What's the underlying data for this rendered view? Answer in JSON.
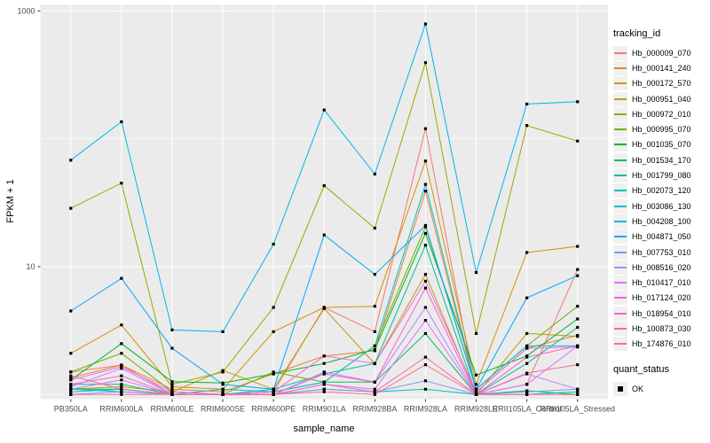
{
  "chart_data": {
    "type": "line",
    "title": "",
    "xlabel": "sample_name",
    "ylabel": "FPKM + 1",
    "y_scale": "log10",
    "legend_title": "tracking_id",
    "legend_position": "right",
    "grid": "on",
    "panel_background": "#EBEBEB",
    "gridline_color": "#FFFFFF",
    "point_color": "#000000",
    "tick_label_color": "#4D4D4D",
    "x_categories": [
      "PB350LA",
      "RRIM600LA",
      "RRIM600LE",
      "RRIM600SE",
      "RRIM600PE",
      "RRIM901LA",
      "RRIM928BA",
      "RRIM928LA",
      "RRIM928LE",
      "RRII105LA_Control",
      "RRII105LA_Stressed"
    ],
    "y_axis": {
      "min": 0.92,
      "max": 1115,
      "ticks": [
        {
          "value": 10,
          "label": "10"
        },
        {
          "value": 1000,
          "label": "1000"
        }
      ],
      "minor_gridlines": [
        1,
        100
      ]
    },
    "ylim": [
      0.92,
      1115
    ],
    "quant_legend": {
      "title": "quant_status",
      "items": [
        "OK"
      ]
    },
    "series": [
      {
        "name": "Hb_000009_070",
        "color": "#F8766D",
        "values": [
          1.5,
          1.7,
          1.0,
          1.0,
          1.05,
          4.8,
          3.1,
          120,
          1.0,
          1.2,
          9.5
        ]
      },
      {
        "name": "Hb_000141_240",
        "color": "#E9842C",
        "values": [
          1.35,
          1.7,
          1.1,
          1.05,
          1.45,
          2.0,
          2.2,
          39,
          1.05,
          2.3,
          2.9
        ]
      },
      {
        "name": "Hb_000172_570",
        "color": "#D69100",
        "values": [
          2.1,
          3.5,
          1.15,
          1.1,
          3.1,
          4.8,
          4.9,
          67,
          1.2,
          12.9,
          14.4
        ]
      },
      {
        "name": "Hb_000951_040",
        "color": "#BC9D00",
        "values": [
          1.1,
          1.15,
          1.05,
          1.54,
          1.1,
          4.7,
          1.74,
          8.7,
          1.0,
          3.0,
          2.85
        ]
      },
      {
        "name": "Hb_000972_010",
        "color": "#9CA700",
        "values": [
          28.6,
          45,
          1.2,
          1.5,
          4.8,
          43,
          20,
          394,
          3.0,
          127,
          96
        ]
      },
      {
        "name": "Hb_000995_070",
        "color": "#6FB000",
        "values": [
          1.5,
          2.1,
          1.05,
          1.0,
          1.5,
          1.25,
          2.4,
          20.5,
          1.1,
          2.4,
          4.9
        ]
      },
      {
        "name": "Hb_001035_070",
        "color": "#00B81F",
        "values": [
          1.3,
          2.5,
          1.26,
          1.23,
          1.45,
          1.75,
          2.25,
          18.2,
          1.42,
          2.0,
          3.9
        ]
      },
      {
        "name": "Hb_001534_170",
        "color": "#00BC59",
        "values": [
          1.1,
          1.1,
          1.0,
          1.0,
          1.05,
          1.25,
          1.25,
          3.0,
          1.0,
          1.07,
          1.0
        ]
      },
      {
        "name": "Hb_001799_080",
        "color": "#00C08E",
        "values": [
          1.2,
          1.2,
          1.0,
          1.0,
          1.1,
          1.45,
          1.75,
          14.7,
          1.0,
          1.75,
          3.35
        ]
      },
      {
        "name": "Hb_002073_120",
        "color": "#00C0B4",
        "values": [
          1.05,
          1.1,
          1.0,
          1.0,
          1.0,
          1.1,
          1.05,
          1.1,
          1.0,
          1.0,
          1.05
        ]
      },
      {
        "name": "Hb_003086_130",
        "color": "#00BDD4",
        "values": [
          1.1,
          1.05,
          1.0,
          1.1,
          1.05,
          1.25,
          2.4,
          44,
          1.1,
          2.4,
          2.4
        ]
      },
      {
        "name": "Hb_004208_100",
        "color": "#00B5EC",
        "values": [
          68,
          136,
          3.2,
          3.1,
          15,
          168,
          53,
          790,
          9,
          187,
          195
        ]
      },
      {
        "name": "Hb_004871_050",
        "color": "#00A7FF",
        "values": [
          4.5,
          8.1,
          2.3,
          1.2,
          1.1,
          17.7,
          8.7,
          21,
          1.1,
          5.7,
          8.5
        ]
      },
      {
        "name": "Hb_007753_010",
        "color": "#7E96FF",
        "values": [
          1.0,
          1.05,
          1.0,
          1.0,
          1.0,
          1.1,
          1.05,
          1.28,
          1.0,
          1.05,
          1.1
        ]
      },
      {
        "name": "Hb_008516_020",
        "color": "#B983FF",
        "values": [
          1.15,
          1.6,
          1.0,
          1.0,
          1.0,
          1.5,
          1.25,
          4.8,
          1.0,
          1.45,
          1.1
        ]
      },
      {
        "name": "Hb_010417_010",
        "color": "#DC71FA",
        "values": [
          1.1,
          1.3,
          1.0,
          1.0,
          1.0,
          1.2,
          1.1,
          3.8,
          1.0,
          1.2,
          2.4
        ]
      },
      {
        "name": "Hb_017124_020",
        "color": "#F265E7",
        "values": [
          1.3,
          1.65,
          1.05,
          1.0,
          1.05,
          2.0,
          1.75,
          7.7,
          1.05,
          2.3,
          2.35
        ]
      },
      {
        "name": "Hb_018954_010",
        "color": "#FF61C7",
        "values": [
          1.2,
          1.4,
          1.0,
          1.0,
          1.0,
          1.45,
          1.25,
          6.8,
          1.0,
          1.96,
          2.4
        ]
      },
      {
        "name": "Hb_100873_030",
        "color": "#FF68A1",
        "values": [
          1.4,
          1.1,
          1.0,
          1.0,
          1.0,
          1.2,
          1.05,
          1.96,
          1.0,
          1.47,
          1.71
        ]
      },
      {
        "name": "Hb_174876_010",
        "color": "#FF6B8F",
        "values": [
          1.0,
          1.0,
          1.0,
          1.0,
          1.0,
          1.05,
          1.0,
          1.71,
          1.0,
          1.0,
          1.0
        ]
      }
    ]
  }
}
